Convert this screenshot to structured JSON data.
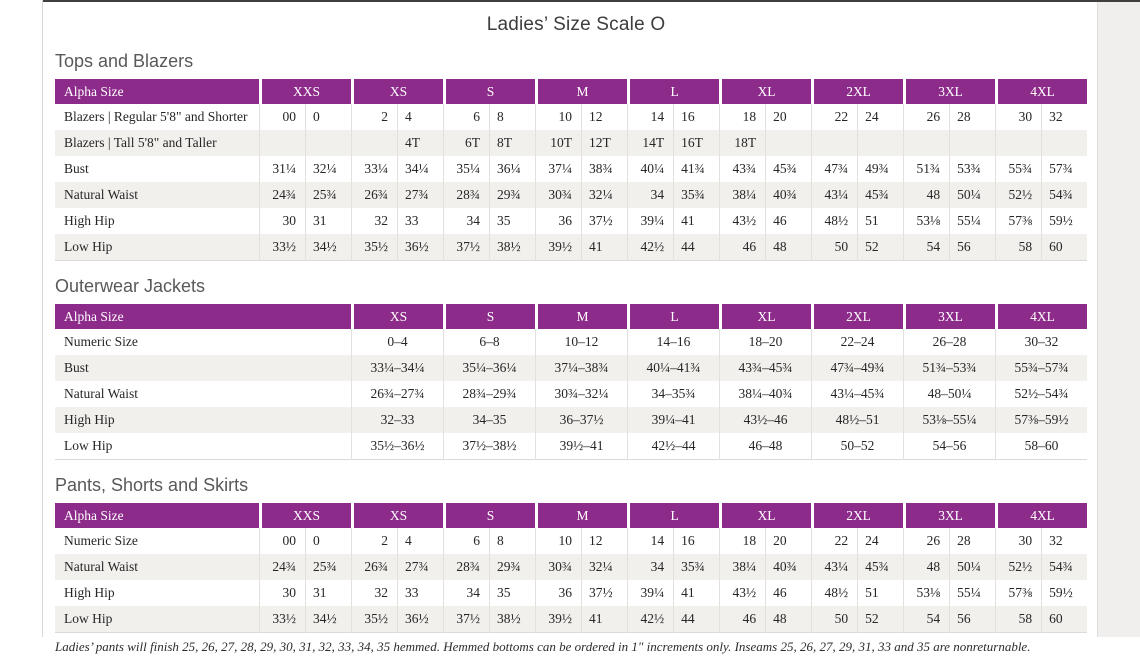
{
  "page": {
    "title": "Ladies’ Size Scale O",
    "footnote": "Ladies’ pants will finish 25, 26, 27, 28, 29, 30, 31, 32, 33, 34, 35 hemmed. Hemmed bottoms can be ordered in 1\" increments only. Inseams 25, 26, 27, 29, 31, 33 and 35 are nonreturnable."
  },
  "colors": {
    "accent_purple": "#8d2b8b",
    "row_stripe": "#f1f0ed",
    "cell_border": "#e3e1dd",
    "heading_gray": "#595959",
    "title_gray": "#3d3d3d"
  },
  "tables": [
    {
      "section": "Tops and Blazers",
      "type": "paired",
      "header_label": "Alpha Size",
      "columns": [
        "XXS",
        "XS",
        "S",
        "M",
        "L",
        "XL",
        "2XL",
        "3XL",
        "4XL"
      ],
      "rows": [
        {
          "label": "Blazers  |  Regular 5'8\" and Shorter",
          "values": [
            "00",
            "0",
            "2",
            "4",
            "6",
            "8",
            "10",
            "12",
            "14",
            "16",
            "18",
            "20",
            "22",
            "24",
            "26",
            "28",
            "30",
            "32"
          ]
        },
        {
          "label": "Blazers  |  Tall 5'8\" and Taller",
          "values": [
            "",
            "",
            "",
            "4T",
            "6T",
            "8T",
            "10T",
            "12T",
            "14T",
            "16T",
            "18T",
            "",
            "",
            "",
            "",
            "",
            "",
            ""
          ]
        },
        {
          "label": "Bust",
          "values": [
            "31¼",
            "32¼",
            "33¼",
            "34¼",
            "35¼",
            "36¼",
            "37¼",
            "38¾",
            "40¼",
            "41¾",
            "43¾",
            "45¾",
            "47¾",
            "49¾",
            "51¾",
            "53¾",
            "55¾",
            "57¾"
          ]
        },
        {
          "label": "Natural Waist",
          "values": [
            "24¾",
            "25¾",
            "26¾",
            "27¾",
            "28¾",
            "29¾",
            "30¾",
            "32¼",
            "34",
            "35¾",
            "38¼",
            "40¾",
            "43¼",
            "45¾",
            "48",
            "50¼",
            "52½",
            "54¾"
          ]
        },
        {
          "label": "High Hip",
          "values": [
            "30",
            "31",
            "32",
            "33",
            "34",
            "35",
            "36",
            "37½",
            "39¼",
            "41",
            "43½",
            "46",
            "48½",
            "51",
            "53⅛",
            "55¼",
            "57⅜",
            "59½"
          ]
        },
        {
          "label": "Low Hip",
          "values": [
            "33½",
            "34½",
            "35½",
            "36½",
            "37½",
            "38½",
            "39½",
            "41",
            "42½",
            "44",
            "46",
            "48",
            "50",
            "52",
            "54",
            "56",
            "58",
            "60"
          ]
        }
      ]
    },
    {
      "section": "Outerwear Jackets",
      "type": "single",
      "header_label": "Alpha Size",
      "columns": [
        "XS",
        "S",
        "M",
        "L",
        "XL",
        "2XL",
        "3XL",
        "4XL"
      ],
      "rows": [
        {
          "label": "Numeric Size",
          "values": [
            "0–4",
            "6–8",
            "10–12",
            "14–16",
            "18–20",
            "22–24",
            "26–28",
            "30–32"
          ]
        },
        {
          "label": "Bust",
          "values": [
            "33¼–34¼",
            "35¼–36¼",
            "37¼–38¾",
            "40¼–41¾",
            "43¾–45¾",
            "47¾–49¾",
            "51¾–53¾",
            "55¾–57¾"
          ]
        },
        {
          "label": "Natural Waist",
          "values": [
            "26¾–27¾",
            "28¾–29¾",
            "30¾–32¼",
            "34–35¾",
            "38¼–40¾",
            "43¼–45¾",
            "48–50¼",
            "52½–54¾"
          ]
        },
        {
          "label": "High Hip",
          "values": [
            "32–33",
            "34–35",
            "36–37½",
            "39¼–41",
            "43½–46",
            "48½–51",
            "53⅛–55¼",
            "57⅜–59½"
          ]
        },
        {
          "label": "Low Hip",
          "values": [
            "35½–36½",
            "37½–38½",
            "39½–41",
            "42½–44",
            "46–48",
            "50–52",
            "54–56",
            "58–60"
          ]
        }
      ]
    },
    {
      "section": "Pants, Shorts and Skirts",
      "type": "paired",
      "header_label": "Alpha Size",
      "columns": [
        "XXS",
        "XS",
        "S",
        "M",
        "L",
        "XL",
        "2XL",
        "3XL",
        "4XL"
      ],
      "rows": [
        {
          "label": "Numeric Size",
          "values": [
            "00",
            "0",
            "2",
            "4",
            "6",
            "8",
            "10",
            "12",
            "14",
            "16",
            "18",
            "20",
            "22",
            "24",
            "26",
            "28",
            "30",
            "32"
          ]
        },
        {
          "label": "Natural Waist",
          "values": [
            "24¾",
            "25¾",
            "26¾",
            "27¾",
            "28¾",
            "29¾",
            "30¾",
            "32¼",
            "34",
            "35¾",
            "38¼",
            "40¾",
            "43¼",
            "45¾",
            "48",
            "50¼",
            "52½",
            "54¾"
          ]
        },
        {
          "label": "High Hip",
          "values": [
            "30",
            "31",
            "32",
            "33",
            "34",
            "35",
            "36",
            "37½",
            "39¼",
            "41",
            "43½",
            "46",
            "48½",
            "51",
            "53⅛",
            "55¼",
            "57⅜",
            "59½"
          ]
        },
        {
          "label": "Low Hip",
          "values": [
            "33½",
            "34½",
            "35½",
            "36½",
            "37½",
            "38½",
            "39½",
            "41",
            "42½",
            "44",
            "46",
            "48",
            "50",
            "52",
            "54",
            "56",
            "58",
            "60"
          ]
        }
      ]
    }
  ]
}
